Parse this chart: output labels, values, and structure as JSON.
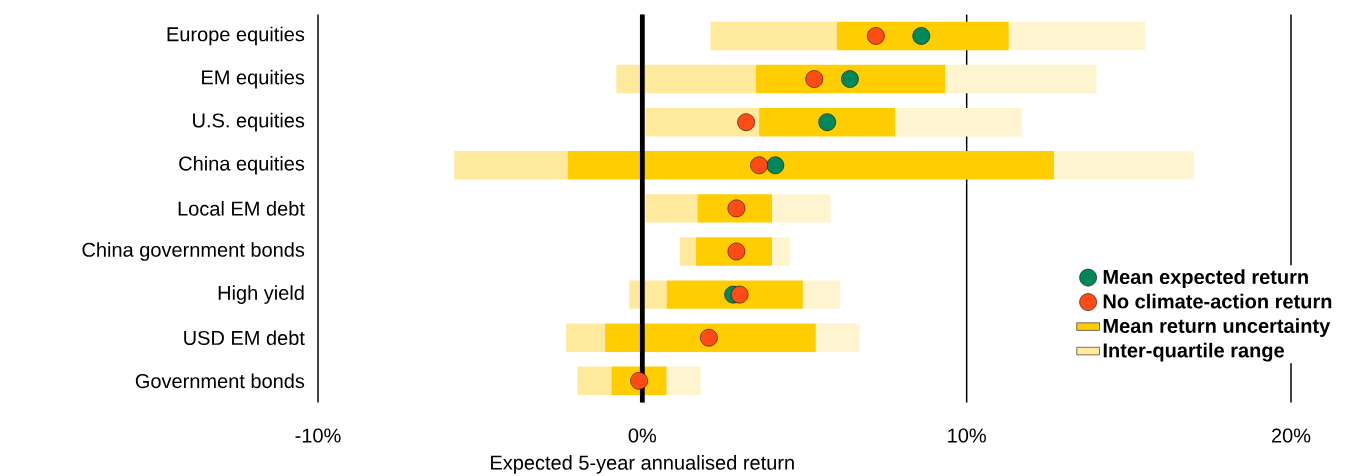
{
  "chart_data": {
    "type": "bar",
    "orientation": "horizontal",
    "xlabel": "Expected 5-year annualised return",
    "categories": [
      "Europe equities",
      "EM equities",
      "U.S. equities",
      "China equities",
      "Local EM debt",
      "China government bonds",
      "High yield",
      "USD EM debt",
      "Government bonds"
    ],
    "series": [
      {
        "name": "Inter-quartile range",
        "color": "#fee99d",
        "base": [
          2.1,
          -0.8,
          0.1,
          -5.8,
          0.1,
          1.15,
          -0.4,
          -2.35,
          -2.0
        ],
        "values": [
          3.9,
          4.3,
          3.5,
          3.5,
          1.6,
          0.5,
          1.15,
          1.2,
          1.05
        ]
      },
      {
        "name": "Mean return uncertainty",
        "color": "#ffcd00",
        "base": [
          6.0,
          3.5,
          3.6,
          -2.3,
          1.7,
          1.65,
          0.75,
          -1.15,
          -0.95
        ],
        "values": [
          5.3,
          5.85,
          4.2,
          15.0,
          2.3,
          2.35,
          4.2,
          6.5,
          1.7
        ]
      },
      {
        "color": "#fef4cf",
        "base": [
          11.3,
          9.35,
          7.8,
          12.7,
          4.0,
          4.0,
          4.95,
          5.35,
          0.75
        ],
        "values": [
          4.2,
          4.65,
          3.9,
          4.3,
          1.8,
          0.55,
          1.15,
          1.35,
          1.05
        ]
      },
      {
        "name": "Mean expected return",
        "type": "scatter",
        "color": "#00875a",
        "marker": "circle",
        "values": [
          8.6,
          6.4,
          5.7,
          4.1,
          null,
          null,
          2.8,
          null,
          null
        ]
      },
      {
        "name": "No climate-action return",
        "type": "scatter",
        "color": "#ff4c17",
        "marker": "circle",
        "values": [
          7.2,
          5.3,
          3.2,
          3.6,
          2.9,
          2.9,
          3.0,
          2.05,
          -0.1
        ]
      }
    ],
    "xlim": [
      -10,
      20
    ],
    "xticks": [
      {
        "value": -10,
        "label": "-10%"
      },
      {
        "value": 0,
        "label": "0%"
      },
      {
        "value": 10,
        "label": "10%"
      },
      {
        "value": 20,
        "label": "20%"
      }
    ],
    "grid": "x",
    "ref_lines": [
      {
        "axis": "x",
        "value": 0,
        "color": "#000000"
      }
    ],
    "legend": "bottom right"
  }
}
